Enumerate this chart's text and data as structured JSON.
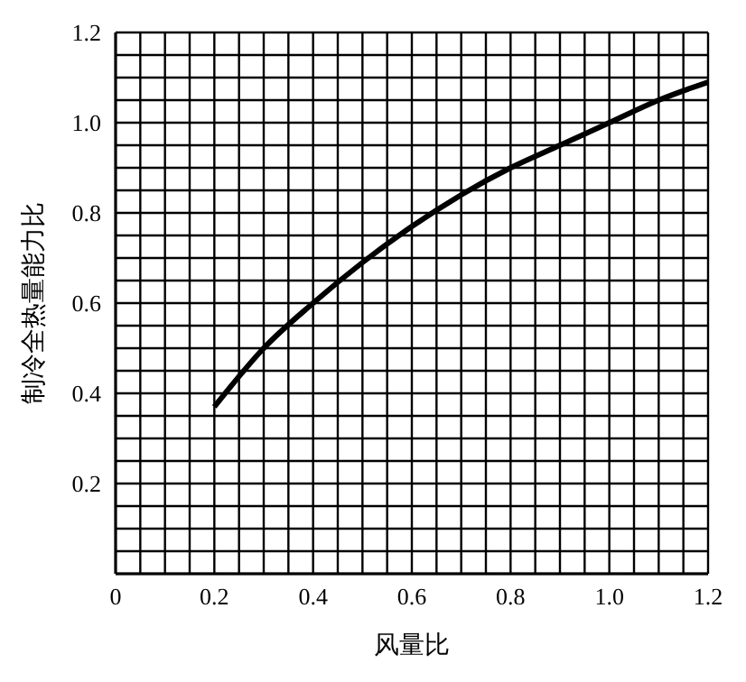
{
  "chart_data": {
    "type": "line",
    "xlabel": "风量比",
    "ylabel": "制冷全热量能力比",
    "x": [
      0.2,
      0.3,
      0.4,
      0.5,
      0.6,
      0.7,
      0.8,
      0.9,
      1.0,
      1.1,
      1.2
    ],
    "series": [
      {
        "color": "#000000",
        "values": [
          0.37,
          0.5,
          0.6,
          0.69,
          0.77,
          0.84,
          0.9,
          0.95,
          1.0,
          1.05,
          1.09
        ]
      }
    ],
    "xlim": [
      0,
      1.2
    ],
    "ylim": [
      0,
      1.2
    ],
    "xticks": [
      0,
      {
        "value": 0.05,
        "label": null
      },
      {
        "value": 0.1,
        "label": null
      },
      {
        "value": 0.15,
        "label": null
      },
      0.2,
      {
        "value": 0.25,
        "label": null
      },
      {
        "value": 0.3,
        "label": null
      },
      {
        "value": 0.35,
        "label": null
      },
      0.4,
      {
        "value": 0.45,
        "label": null
      },
      {
        "value": 0.5,
        "label": null
      },
      {
        "value": 0.55,
        "label": null
      },
      0.6,
      {
        "value": 0.65,
        "label": null
      },
      {
        "value": 0.7,
        "label": null
      },
      {
        "value": 0.75,
        "label": null
      },
      0.8,
      {
        "value": 0.85,
        "label": null
      },
      {
        "value": 0.9,
        "label": null
      },
      {
        "value": 0.95,
        "label": null
      },
      {
        "value": 1.0,
        "label": "1.0"
      },
      {
        "value": 1.05,
        "label": null
      },
      {
        "value": 1.1,
        "label": null
      },
      {
        "value": 1.15,
        "label": null
      },
      1.2
    ],
    "yticks": [
      {
        "value": 0,
        "label": null
      },
      {
        "value": 0.05,
        "label": null
      },
      {
        "value": 0.1,
        "label": null
      },
      {
        "value": 0.15,
        "label": null
      },
      0.2,
      {
        "value": 0.25,
        "label": null
      },
      {
        "value": 0.3,
        "label": null
      },
      {
        "value": 0.35,
        "label": null
      },
      0.4,
      {
        "value": 0.45,
        "label": null
      },
      {
        "value": 0.5,
        "label": null
      },
      {
        "value": 0.55,
        "label": null
      },
      0.6,
      {
        "value": 0.65,
        "label": null
      },
      {
        "value": 0.7,
        "label": null
      },
      {
        "value": 0.75,
        "label": null
      },
      0.8,
      {
        "value": 0.85,
        "label": null
      },
      {
        "value": 0.9,
        "label": null
      },
      {
        "value": 0.95,
        "label": null
      },
      {
        "value": 1.0,
        "label": "1.0"
      },
      {
        "value": 1.05,
        "label": null
      },
      {
        "value": 1.1,
        "label": null
      },
      {
        "value": 1.15,
        "label": null
      },
      1.2
    ],
    "grid": true,
    "marker": "none",
    "line_style": "solid"
  }
}
